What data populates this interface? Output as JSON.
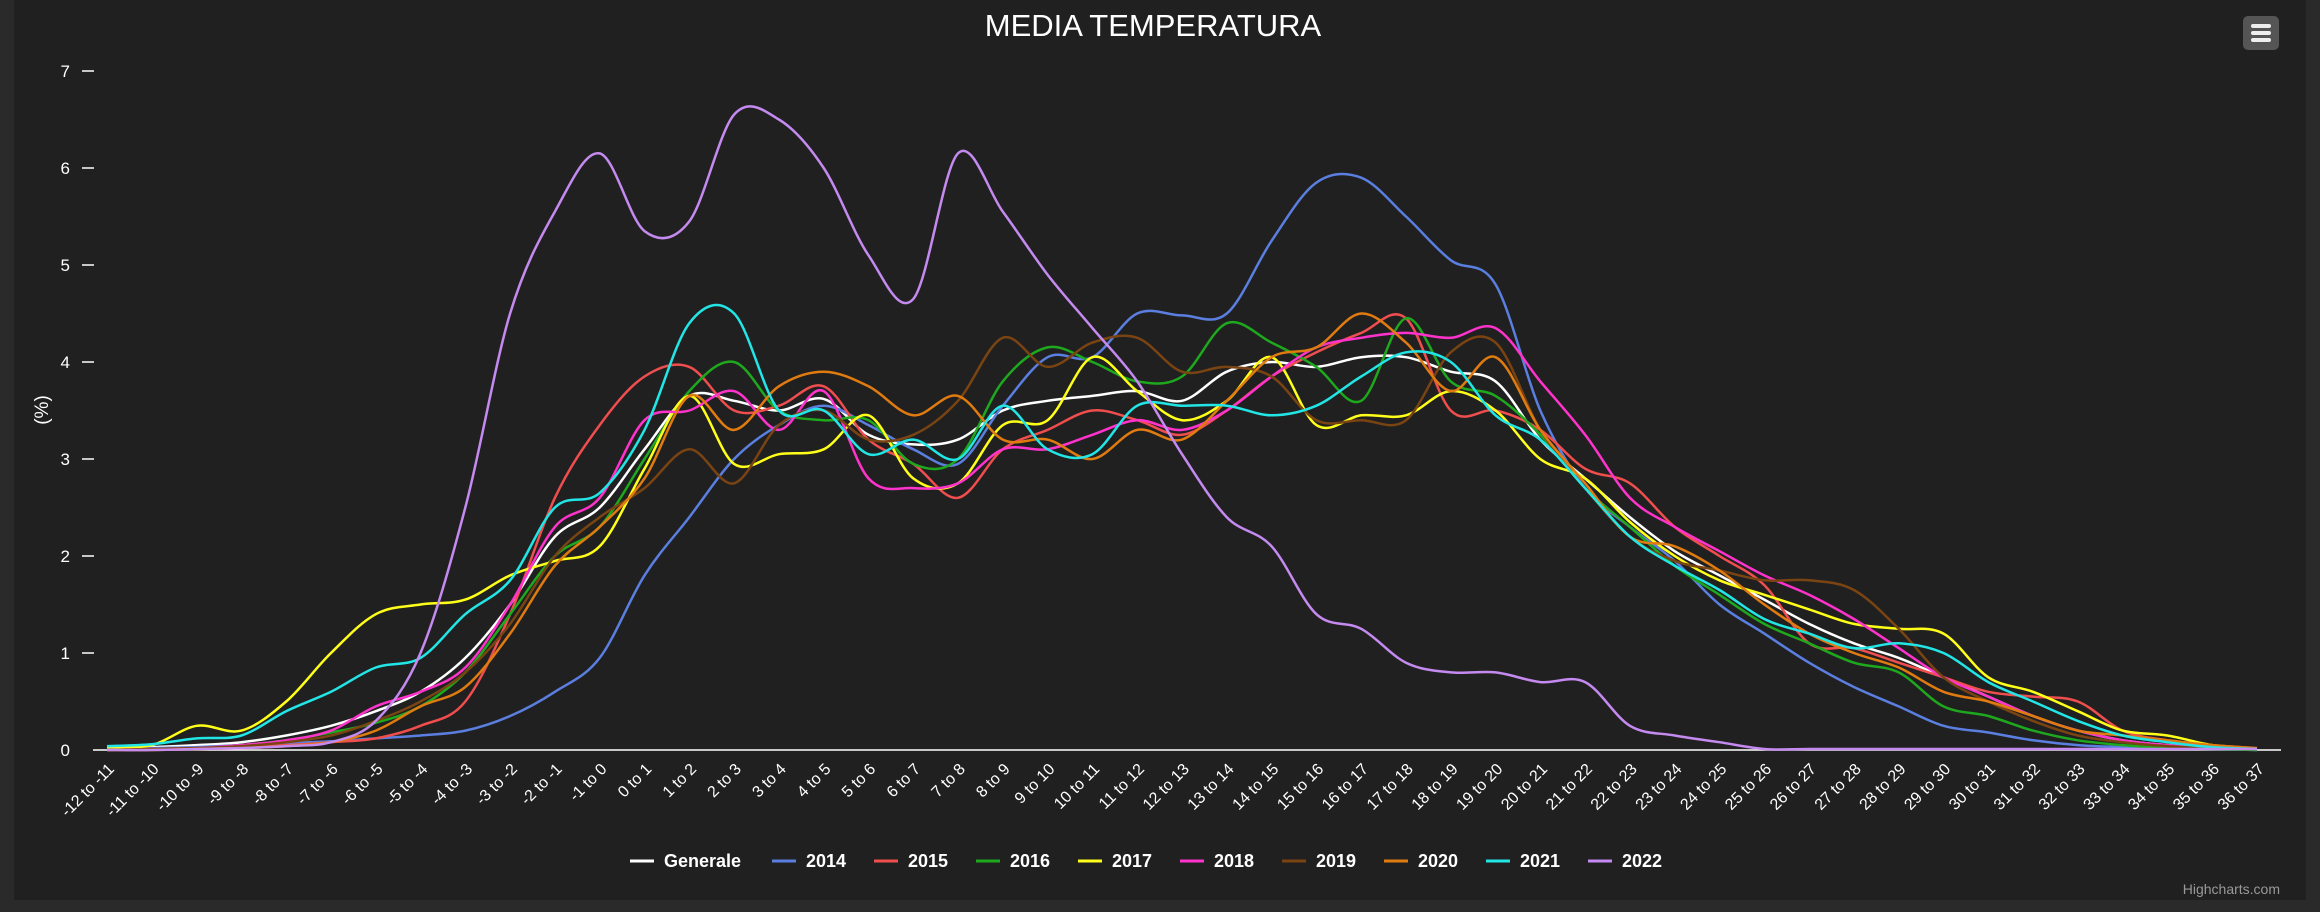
{
  "menu_icon": "hamburger-menu-icon",
  "credits": "Highcharts.com",
  "colors": {
    "background": "#2a2a2b",
    "plot_background": "#202020",
    "text": "#ffffff"
  },
  "chart_data": {
    "type": "line",
    "title": "MEDIA TEMPERATURA",
    "xlabel": "",
    "ylabel": "(%)",
    "ylim": [
      0,
      7
    ],
    "yticks": [
      "0",
      "1",
      "2",
      "3",
      "4",
      "5",
      "6",
      "7"
    ],
    "grid": false,
    "legend_position": "bottom-center",
    "categories": [
      "-12 to -11",
      "-11 to -10",
      "-10 to -9",
      "-9 to -8",
      "-8 to -7",
      "-7 to -6",
      "-6 to -5",
      "-5 to -4",
      "-4 to -3",
      "-3 to -2",
      "-2 to -1",
      "-1 to 0",
      "0 to 1",
      "1 to 2",
      "2 to 3",
      "3 to 4",
      "4 to 5",
      "5 to 6",
      "6 to 7",
      "7 to 8",
      "8 to 9",
      "9 to 10",
      "10 to 11",
      "11 to 12",
      "12 to 13",
      "13 to 14",
      "14 to 15",
      "15 to 16",
      "16 to 17",
      "17 to 18",
      "18 to 19",
      "19 to 20",
      "20 to 21",
      "21 to 22",
      "22 to 23",
      "23 to 24",
      "24 to 25",
      "25 to 26",
      "26 to 27",
      "27 to 28",
      "28 to 29",
      "29 to 30",
      "30 to 31",
      "31 to 32",
      "32 to 33",
      "33 to 34",
      "34 to 35",
      "35 to 36",
      "36 to 37"
    ],
    "series": [
      {
        "name": "Generale",
        "color": "#ffffff",
        "values": [
          0.02,
          0.03,
          0.05,
          0.08,
          0.15,
          0.25,
          0.4,
          0.6,
          0.95,
          1.5,
          2.2,
          2.5,
          3.1,
          3.65,
          3.6,
          3.5,
          3.62,
          3.25,
          3.15,
          3.2,
          3.5,
          3.6,
          3.65,
          3.7,
          3.6,
          3.9,
          4.0,
          3.95,
          4.05,
          4.05,
          3.9,
          3.8,
          3.2,
          2.8,
          2.4,
          2.05,
          1.8,
          1.55,
          1.3,
          1.1,
          0.95,
          0.75,
          0.55,
          0.35,
          0.2,
          0.1,
          0.05,
          0.02,
          0.01
        ]
      },
      {
        "name": "2014",
        "color": "#5b7fe0",
        "values": [
          0.01,
          0.02,
          0.03,
          0.05,
          0.07,
          0.09,
          0.12,
          0.15,
          0.2,
          0.35,
          0.6,
          0.95,
          1.8,
          2.4,
          3.0,
          3.35,
          3.55,
          3.35,
          3.1,
          2.95,
          3.55,
          4.05,
          4.05,
          4.5,
          4.48,
          4.5,
          5.25,
          5.85,
          5.9,
          5.5,
          5.05,
          4.8,
          3.5,
          2.7,
          2.3,
          1.95,
          1.5,
          1.2,
          0.9,
          0.65,
          0.45,
          0.25,
          0.18,
          0.1,
          0.05,
          0.03,
          0.02,
          0.01,
          0.0
        ]
      },
      {
        "name": "2015",
        "color": "#f04e4e",
        "values": [
          0.0,
          0.01,
          0.02,
          0.03,
          0.05,
          0.08,
          0.12,
          0.25,
          0.5,
          1.4,
          2.6,
          3.35,
          3.85,
          3.95,
          3.5,
          3.55,
          3.75,
          3.2,
          2.95,
          2.6,
          3.1,
          3.3,
          3.5,
          3.4,
          3.25,
          3.5,
          3.85,
          4.1,
          4.3,
          4.45,
          3.5,
          3.5,
          3.3,
          2.9,
          2.75,
          2.3,
          2.0,
          1.7,
          1.1,
          1.05,
          0.9,
          0.75,
          0.6,
          0.55,
          0.5,
          0.2,
          0.1,
          0.05,
          0.02
        ]
      },
      {
        "name": "2016",
        "color": "#1ea81e",
        "values": [
          0.0,
          0.01,
          0.02,
          0.05,
          0.1,
          0.18,
          0.28,
          0.45,
          0.8,
          1.4,
          2.0,
          2.3,
          3.0,
          3.7,
          4.0,
          3.5,
          3.4,
          3.4,
          2.95,
          3.0,
          3.8,
          4.15,
          4.0,
          3.8,
          3.85,
          4.4,
          4.2,
          3.95,
          3.6,
          4.45,
          3.8,
          3.65,
          3.25,
          2.7,
          2.3,
          1.9,
          1.6,
          1.3,
          1.1,
          0.9,
          0.8,
          0.45,
          0.35,
          0.2,
          0.1,
          0.05,
          0.02,
          0.01,
          0.0
        ]
      },
      {
        "name": "2017",
        "color": "#ffff1a",
        "values": [
          0.03,
          0.05,
          0.25,
          0.2,
          0.5,
          1.0,
          1.4,
          1.5,
          1.55,
          1.8,
          1.95,
          2.1,
          2.9,
          3.65,
          2.95,
          3.05,
          3.1,
          3.45,
          2.8,
          2.75,
          3.35,
          3.4,
          4.05,
          3.7,
          3.4,
          3.6,
          4.05,
          3.35,
          3.45,
          3.45,
          3.7,
          3.5,
          3.0,
          2.8,
          2.35,
          2.0,
          1.75,
          1.6,
          1.45,
          1.3,
          1.25,
          1.2,
          0.75,
          0.6,
          0.4,
          0.2,
          0.15,
          0.05,
          0.01
        ]
      },
      {
        "name": "2018",
        "color": "#ff33cc",
        "values": [
          0.0,
          0.01,
          0.02,
          0.05,
          0.1,
          0.2,
          0.45,
          0.6,
          0.85,
          1.5,
          2.3,
          2.6,
          3.4,
          3.5,
          3.7,
          3.3,
          3.7,
          2.8,
          2.7,
          2.75,
          3.1,
          3.1,
          3.25,
          3.4,
          3.3,
          3.5,
          3.85,
          4.15,
          4.25,
          4.3,
          4.25,
          4.35,
          3.8,
          3.25,
          2.6,
          2.3,
          2.05,
          1.8,
          1.6,
          1.35,
          1.05,
          0.75,
          0.55,
          0.35,
          0.2,
          0.1,
          0.05,
          0.02,
          0.01
        ]
      },
      {
        "name": "2019",
        "color": "#7a4412",
        "values": [
          0.0,
          0.01,
          0.02,
          0.04,
          0.08,
          0.15,
          0.3,
          0.5,
          0.8,
          1.3,
          2.0,
          2.4,
          2.7,
          3.1,
          2.75,
          3.35,
          3.5,
          3.2,
          3.25,
          3.6,
          4.25,
          3.95,
          4.2,
          4.25,
          3.9,
          3.95,
          3.85,
          3.4,
          3.4,
          3.4,
          4.1,
          4.2,
          3.3,
          2.7,
          2.2,
          1.95,
          1.85,
          1.75,
          1.75,
          1.65,
          1.25,
          0.75,
          0.5,
          0.3,
          0.15,
          0.08,
          0.04,
          0.02,
          0.01
        ]
      },
      {
        "name": "2020",
        "color": "#e07b10",
        "values": [
          0.0,
          0.0,
          0.01,
          0.02,
          0.04,
          0.08,
          0.2,
          0.45,
          0.65,
          1.2,
          1.9,
          2.3,
          2.8,
          3.65,
          3.3,
          3.75,
          3.9,
          3.75,
          3.45,
          3.65,
          3.2,
          3.2,
          3.0,
          3.3,
          3.2,
          3.6,
          4.05,
          4.15,
          4.5,
          4.2,
          3.7,
          4.05,
          3.3,
          2.75,
          2.2,
          2.1,
          1.85,
          1.5,
          1.2,
          1.0,
          0.85,
          0.6,
          0.5,
          0.35,
          0.2,
          0.15,
          0.1,
          0.05,
          0.02
        ]
      },
      {
        "name": "2021",
        "color": "#22e6e6",
        "values": [
          0.04,
          0.06,
          0.12,
          0.15,
          0.4,
          0.6,
          0.85,
          0.95,
          1.4,
          1.75,
          2.5,
          2.65,
          3.3,
          4.4,
          4.5,
          3.5,
          3.5,
          3.05,
          3.2,
          3.0,
          3.55,
          3.1,
          3.05,
          3.55,
          3.55,
          3.55,
          3.45,
          3.55,
          3.85,
          4.1,
          4.0,
          3.45,
          3.2,
          2.7,
          2.2,
          1.9,
          1.65,
          1.35,
          1.2,
          1.05,
          1.1,
          1.0,
          0.7,
          0.5,
          0.3,
          0.15,
          0.08,
          0.03,
          0.01
        ]
      },
      {
        "name": "2022",
        "color": "#c58af0",
        "values": [
          0.0,
          0.0,
          0.01,
          0.02,
          0.04,
          0.08,
          0.3,
          1.0,
          2.5,
          4.5,
          5.55,
          6.15,
          5.35,
          5.45,
          6.55,
          6.5,
          6.0,
          5.1,
          4.65,
          6.15,
          5.55,
          4.9,
          4.35,
          3.8,
          3.05,
          2.4,
          2.1,
          1.4,
          1.25,
          0.9,
          0.8,
          0.8,
          0.7,
          0.7,
          0.25,
          0.15,
          0.08,
          0.01,
          0.01,
          0.01,
          0.01,
          0.01,
          0.01,
          0.01,
          0.01,
          0.01,
          0.01,
          0.01,
          0.01
        ]
      }
    ]
  }
}
